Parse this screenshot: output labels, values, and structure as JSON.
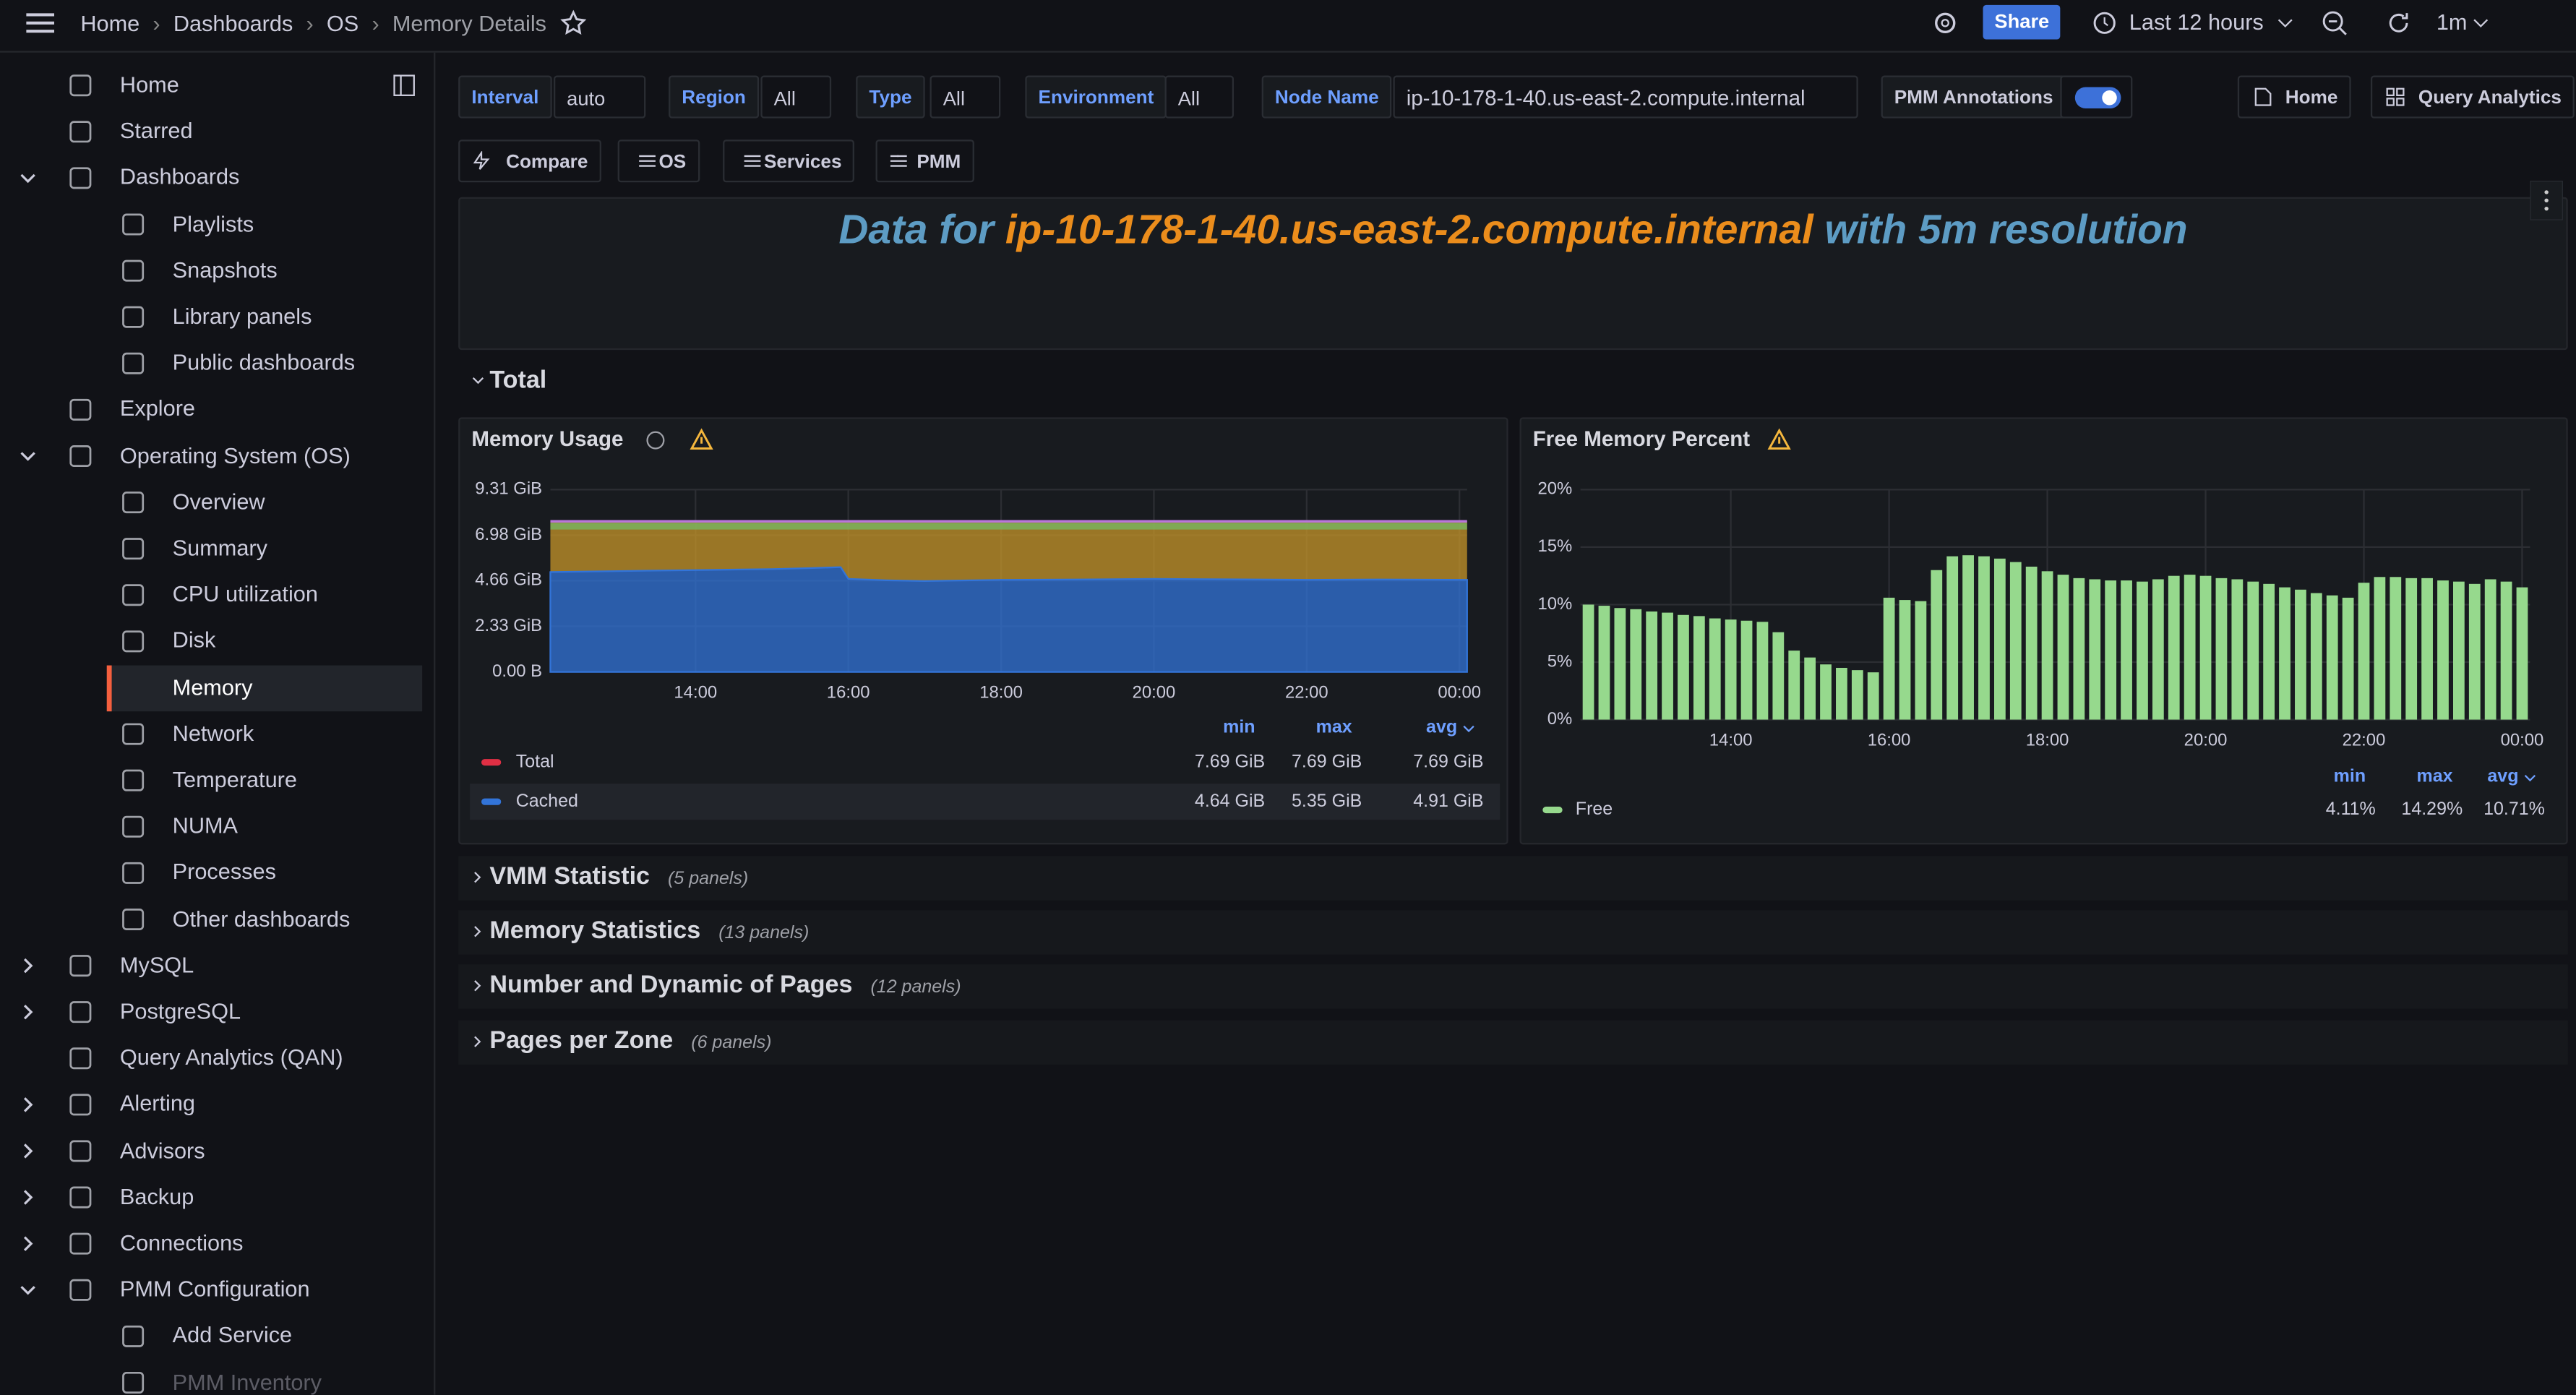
{
  "breadcrumbs": [
    "Home",
    "Dashboards",
    "OS",
    "Memory Details"
  ],
  "topbar": {
    "share": "Share",
    "time_range": "Last 12 hours",
    "refresh": "1m"
  },
  "sidebar": [
    "Home",
    "Starred",
    "Dashboards",
    "Playlists",
    "Snapshots",
    "Library panels",
    "Public dashboards",
    "Explore",
    "Operating System (OS)",
    "Overview",
    "Summary",
    "CPU utilization",
    "Disk",
    "Memory",
    "Network",
    "Temperature",
    "NUMA",
    "Processes",
    "Other dashboards",
    "MySQL",
    "PostgreSQL",
    "Query Analytics (QAN)",
    "Alerting",
    "Advisors",
    "Backup",
    "Connections",
    "PMM Configuration",
    "Add Service",
    "PMM Inventory"
  ],
  "variables": [
    {
      "label": "Interval",
      "value": "auto"
    },
    {
      "label": "Region",
      "value": "All"
    },
    {
      "label": "Type",
      "value": "All"
    },
    {
      "label": "Environment",
      "value": "All"
    },
    {
      "label": "Node Name",
      "value": "ip-10-178-1-40.us-east-2.compute.internal"
    }
  ],
  "annotations_label": "PMM Annotations",
  "right_buttons": [
    "Home",
    "Query Analytics"
  ],
  "links": [
    "Compare",
    "OS",
    "Services",
    "PMM"
  ],
  "banner": {
    "prefix": "Data for ",
    "host": "ip-10-178-1-40.us-east-2.compute.internal",
    "suffix": " with 5m resolution"
  },
  "rows": [
    {
      "title": "Total"
    },
    {
      "title": "VMM Statistic",
      "count": "(5 panels)"
    },
    {
      "title": "Memory Statistics",
      "count": "(13 panels)"
    },
    {
      "title": "Number and Dynamic of Pages",
      "count": "(12 panels)"
    },
    {
      "title": "Pages per Zone",
      "count": "(6 panels)"
    }
  ],
  "chart_data": [
    {
      "type": "area",
      "title": "Memory Usage",
      "xlim": [
        12.1,
        24.1
      ],
      "ylim": [
        0,
        9.31
      ],
      "xticks": [
        {
          "value": 14,
          "label": "14:00"
        },
        {
          "value": 16,
          "label": "16:00"
        },
        {
          "value": 18,
          "label": "18:00"
        },
        {
          "value": 20,
          "label": "20:00"
        },
        {
          "value": 22,
          "label": "22:00"
        },
        {
          "value": 24,
          "label": "00:00"
        }
      ],
      "yticks": [
        {
          "value": 0,
          "label": "0.00 B"
        },
        {
          "value": 2.33,
          "label": "2.33 GiB"
        },
        {
          "value": 4.66,
          "label": "4.66 GiB"
        },
        {
          "value": 6.98,
          "label": "6.98 GiB"
        },
        {
          "value": 9.31,
          "label": "9.31 GiB"
        }
      ],
      "grid": true,
      "legend_columns": [
        "min",
        "max",
        "avg"
      ],
      "x": [
        12.1,
        13,
        14,
        15,
        15.5,
        15.9,
        16.0,
        16.5,
        17,
        18,
        19,
        20,
        21,
        22,
        23,
        24.1
      ],
      "series": [
        {
          "name": "Total",
          "color": "#e02f44",
          "style": "line",
          "values": [
            7.69,
            7.69,
            7.69,
            7.69,
            7.69,
            7.69,
            7.69,
            7.69,
            7.69,
            7.69,
            7.69,
            7.69,
            7.69,
            7.69,
            7.69,
            7.69
          ],
          "stats": [
            "7.69 GiB",
            "7.69 GiB",
            "7.69 GiB"
          ]
        },
        {
          "name": "Cached",
          "color": "#3274d9",
          "style": "area",
          "values": [
            5.1,
            5.15,
            5.2,
            5.25,
            5.3,
            5.35,
            4.75,
            4.68,
            4.64,
            4.7,
            4.72,
            4.75,
            4.73,
            4.7,
            4.72,
            4.7
          ],
          "stats": [
            "4.64 GiB",
            "5.35 GiB",
            "4.91 GiB"
          ]
        }
      ]
    },
    {
      "type": "bar",
      "title": "Free Memory Percent",
      "xlim": [
        12.1,
        24.1
      ],
      "ylim": [
        0,
        20
      ],
      "xticks": [
        {
          "value": 14,
          "label": "14:00"
        },
        {
          "value": 16,
          "label": "16:00"
        },
        {
          "value": 18,
          "label": "18:00"
        },
        {
          "value": 20,
          "label": "20:00"
        },
        {
          "value": 22,
          "label": "22:00"
        },
        {
          "value": 24,
          "label": "00:00"
        }
      ],
      "yticks": [
        {
          "value": 0,
          "label": "0%"
        },
        {
          "value": 5,
          "label": "5%"
        },
        {
          "value": 10,
          "label": "10%"
        },
        {
          "value": 15,
          "label": "15%"
        },
        {
          "value": 20,
          "label": "20%"
        }
      ],
      "grid": true,
      "legend_columns": [
        "min",
        "max",
        "avg"
      ],
      "x": [
        12.2,
        12.4,
        12.6,
        12.8,
        13.0,
        13.2,
        13.4,
        13.6,
        13.8,
        14.0,
        14.2,
        14.4,
        14.6,
        14.8,
        15.0,
        15.2,
        15.4,
        15.6,
        15.8,
        16.0,
        16.2,
        16.4,
        16.6,
        16.8,
        17.0,
        17.2,
        17.4,
        17.6,
        17.8,
        18.0,
        18.2,
        18.4,
        18.6,
        18.8,
        19.0,
        19.2,
        19.4,
        19.6,
        19.8,
        20.0,
        20.2,
        20.4,
        20.6,
        20.8,
        21.0,
        21.2,
        21.4,
        21.6,
        21.8,
        22.0,
        22.2,
        22.4,
        22.6,
        22.8,
        23.0,
        23.2,
        23.4,
        23.6,
        23.8,
        24.0
      ],
      "series": [
        {
          "name": "Free",
          "color": "#96d98d",
          "values": [
            10.0,
            9.9,
            9.7,
            9.6,
            9.4,
            9.3,
            9.1,
            9.0,
            8.8,
            8.7,
            8.6,
            8.5,
            7.6,
            6.0,
            5.4,
            4.8,
            4.5,
            4.3,
            4.11,
            10.6,
            10.4,
            10.3,
            13.0,
            14.2,
            14.29,
            14.2,
            14.0,
            13.7,
            13.3,
            12.9,
            12.6,
            12.3,
            12.2,
            12.1,
            12.1,
            12.0,
            12.2,
            12.5,
            12.6,
            12.5,
            12.3,
            12.2,
            12.0,
            11.8,
            11.5,
            11.3,
            11.0,
            10.8,
            10.6,
            11.9,
            12.4,
            12.4,
            12.3,
            12.3,
            12.1,
            12.0,
            11.8,
            12.2,
            12.0,
            11.5
          ],
          "stats": [
            "4.11%",
            "14.29%",
            "10.71%"
          ]
        }
      ]
    }
  ]
}
